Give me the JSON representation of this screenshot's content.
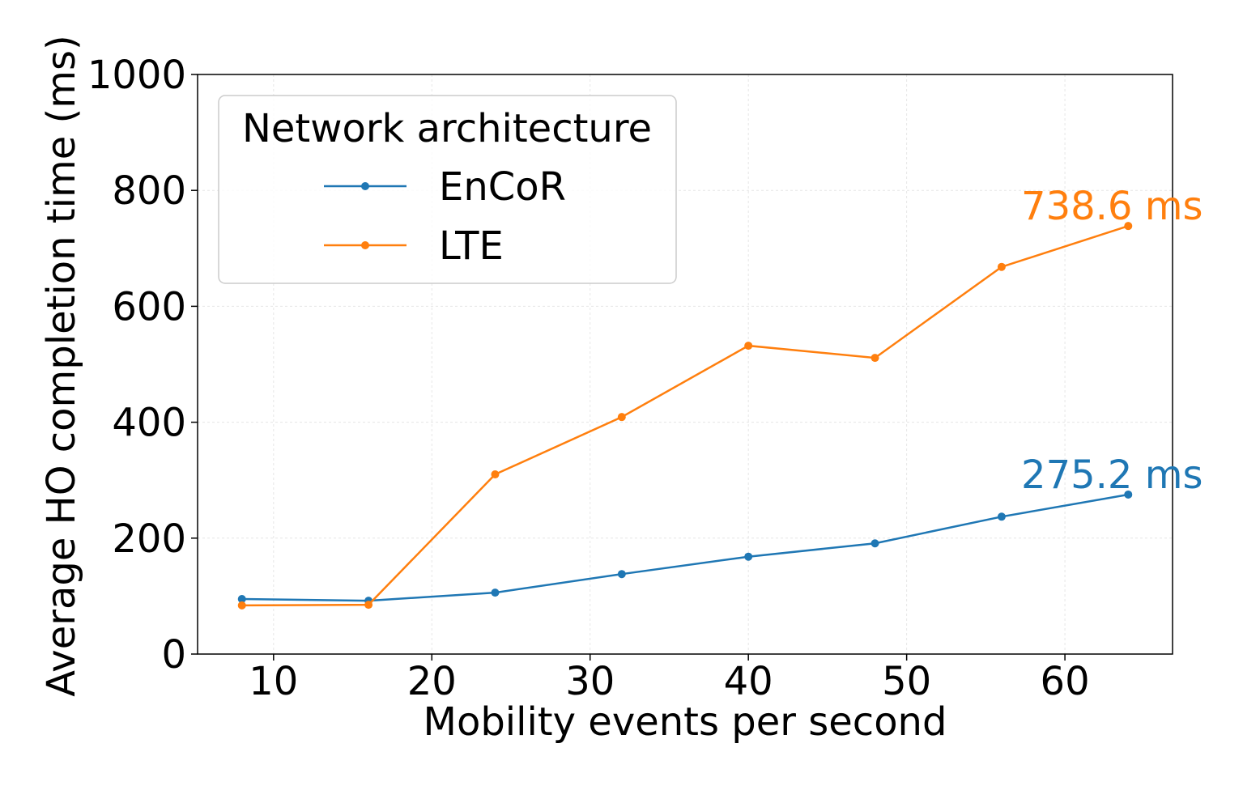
{
  "chart_data": {
    "type": "line",
    "xlabel": "Mobility events per second",
    "ylabel": "Average HO completion time (ms)",
    "x": [
      8,
      16,
      24,
      32,
      40,
      48,
      56,
      64
    ],
    "series": [
      {
        "name": "EnCoR",
        "color": "#1f77b4",
        "values": [
          95,
          92,
          106,
          138,
          168,
          191,
          237,
          275.2
        ],
        "value_labels": [
          null,
          null,
          null,
          null,
          null,
          null,
          null,
          "275.2 ms"
        ]
      },
      {
        "name": "LTE",
        "color": "#ff7f0e",
        "values": [
          84,
          85,
          310,
          409,
          532,
          511,
          668,
          738.6
        ],
        "value_labels": [
          null,
          null,
          null,
          null,
          null,
          null,
          null,
          "738.6 ms"
        ]
      }
    ],
    "xlim": [
      5.2,
      66.8
    ],
    "ylim": [
      0,
      1000
    ],
    "xticks": [
      10,
      20,
      30,
      40,
      50,
      60
    ],
    "yticks": [
      0,
      200,
      400,
      600,
      800,
      1000
    ],
    "grid": true,
    "legend": {
      "title": "Network architecture",
      "position": "upper left"
    }
  }
}
